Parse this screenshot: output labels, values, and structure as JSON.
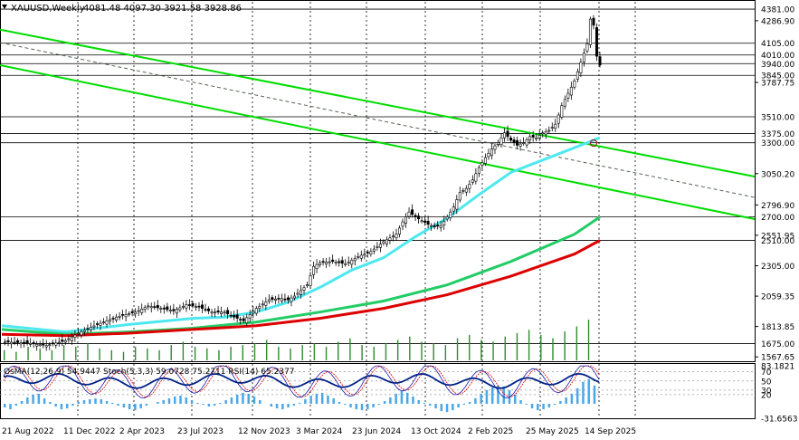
{
  "header": {
    "symbol": "XAUUSD,Weekly",
    "ohlc": "4081.48 4097.30 3921.58 3928.86"
  },
  "osc_header": "OsMA(12,26,9) 54.9447   Stoch(5,3,3) 59.0728 75.2711   RSI(14) 65.2377",
  "chart_data": [
    {
      "type": "candlestick",
      "x_labels": [
        "21 Aug 2022",
        "11 Dec 2022",
        "2 Apr 2023",
        "23 Jul 2023",
        "12 Nov 2023",
        "3 Mar 2024",
        "23 Jun 2024",
        "13 Oct 2024",
        "2 Feb 2025",
        "25 May 2025",
        "14 Sep 2025"
      ],
      "y_ticks": [
        "4286.90",
        "3787.75",
        "3050.20",
        "2796.90",
        "2551.95",
        "2305.00",
        "2059.35",
        "1813.85",
        "1567.65"
      ],
      "y_range": [
        1540,
        4440
      ],
      "levels": [
        {
          "value": 4381.0,
          "label": "4381.00"
        },
        {
          "value": 4105.0,
          "label": "4105.00"
        },
        {
          "value": 4010.0,
          "label": "4010.00"
        },
        {
          "value": 3940.0,
          "label": "3940.00"
        },
        {
          "value": 3845.0,
          "label": "3845.00"
        },
        {
          "value": 3510.0,
          "label": "3510.00"
        },
        {
          "value": 3375.0,
          "label": "3375.00"
        },
        {
          "value": 3300.0,
          "label": "3300.00"
        },
        {
          "value": 2700.0,
          "label": "2700.00"
        },
        {
          "value": 2510.0,
          "label": "2510.00"
        },
        {
          "value": 1675.0,
          "label": "1675.00"
        }
      ],
      "price_path": [
        [
          0,
          1690
        ],
        [
          8,
          1680
        ],
        [
          14,
          1660
        ],
        [
          20,
          1700
        ],
        [
          24,
          1760
        ],
        [
          30,
          1830
        ],
        [
          36,
          1890
        ],
        [
          42,
          1930
        ],
        [
          46,
          1980
        ],
        [
          50,
          1960
        ],
        [
          54,
          1940
        ],
        [
          58,
          1990
        ],
        [
          62,
          1970
        ],
        [
          66,
          1930
        ],
        [
          70,
          1930
        ],
        [
          72,
          1900
        ],
        [
          74,
          1880
        ],
        [
          76,
          1860
        ],
        [
          80,
          1960
        ],
        [
          84,
          2030
        ],
        [
          88,
          2040
        ],
        [
          90,
          2030
        ],
        [
          92,
          2060
        ],
        [
          96,
          2150
        ],
        [
          98,
          2300
        ],
        [
          100,
          2330
        ],
        [
          104,
          2340
        ],
        [
          108,
          2320
        ],
        [
          112,
          2380
        ],
        [
          116,
          2420
        ],
        [
          120,
          2500
        ],
        [
          124,
          2560
        ],
        [
          126,
          2660
        ],
        [
          128,
          2740
        ],
        [
          130,
          2700
        ],
        [
          134,
          2640
        ],
        [
          136,
          2620
        ],
        [
          138,
          2630
        ],
        [
          140,
          2700
        ],
        [
          142,
          2780
        ],
        [
          144,
          2900
        ],
        [
          146,
          2930
        ],
        [
          148,
          3000
        ],
        [
          150,
          3100
        ],
        [
          152,
          3180
        ],
        [
          154,
          3250
        ],
        [
          156,
          3300
        ],
        [
          158,
          3380
        ],
        [
          160,
          3320
        ],
        [
          162,
          3280
        ],
        [
          164,
          3300
        ],
        [
          166,
          3350
        ],
        [
          168,
          3340
        ],
        [
          170,
          3380
        ],
        [
          172,
          3400
        ],
        [
          174,
          3450
        ],
        [
          176,
          3600
        ],
        [
          178,
          3700
        ],
        [
          180,
          3800
        ],
        [
          182,
          3950
        ],
        [
          184,
          4100
        ],
        [
          185,
          4300
        ],
        [
          186,
          4250
        ],
        [
          187,
          4000
        ],
        [
          188,
          3928
        ]
      ],
      "moving_averages": [
        {
          "name": "",
          "color": "#4de8ef",
          "points": [
            [
              0,
              1820
            ],
            [
              20,
              1770
            ],
            [
              40,
              1830
            ],
            [
              60,
              1880
            ],
            [
              70,
              1890
            ],
            [
              80,
              1930
            ],
            [
              90,
              2010
            ],
            [
              100,
              2130
            ],
            [
              110,
              2270
            ],
            [
              120,
              2370
            ],
            [
              130,
              2540
            ],
            [
              140,
              2690
            ],
            [
              150,
              2880
            ],
            [
              160,
              3060
            ],
            [
              170,
              3160
            ],
            [
              180,
              3260
            ],
            [
              188,
              3340
            ]
          ]
        },
        {
          "name": "",
          "color": "#22cc66",
          "points": [
            [
              0,
              1790
            ],
            [
              20,
              1750
            ],
            [
              40,
              1770
            ],
            [
              60,
              1800
            ],
            [
              80,
              1850
            ],
            [
              100,
              1930
            ],
            [
              120,
              2020
            ],
            [
              140,
              2150
            ],
            [
              160,
              2340
            ],
            [
              180,
              2560
            ],
            [
              188,
              2700
            ]
          ]
        },
        {
          "name": "",
          "color": "#dd0000",
          "points": [
            [
              0,
              1750
            ],
            [
              20,
              1740
            ],
            [
              40,
              1760
            ],
            [
              60,
              1790
            ],
            [
              80,
              1820
            ],
            [
              100,
              1880
            ],
            [
              120,
              1960
            ],
            [
              140,
              2070
            ],
            [
              160,
              2220
            ],
            [
              180,
              2400
            ],
            [
              188,
              2510
            ]
          ]
        }
      ],
      "volume": [
        6,
        5,
        8,
        7,
        6,
        9,
        8,
        10,
        7,
        6,
        5,
        8,
        7,
        6,
        9,
        11,
        8,
        7,
        6,
        8,
        9,
        10,
        12,
        8,
        7,
        9,
        10,
        8,
        11,
        13,
        9,
        8,
        10,
        12,
        14,
        11,
        10,
        9,
        13,
        15,
        12,
        11,
        14,
        16,
        18,
        15,
        13,
        17,
        20,
        24
      ]
    },
    {
      "type": "oscillator",
      "y_labels": [
        "83.1821",
        "70",
        "50",
        "30",
        "20",
        "-31.6563"
      ],
      "osma": [
        -8,
        -12,
        -4,
        6,
        14,
        20,
        22,
        12,
        4,
        -6,
        -12,
        -10,
        -4,
        4,
        8,
        10,
        12,
        10,
        6,
        2,
        -4,
        -8,
        -12,
        -14,
        -10,
        -4,
        0,
        4,
        8,
        12,
        16,
        18,
        14,
        8,
        2,
        -2,
        -6,
        -4,
        2,
        8,
        14,
        20,
        24,
        22,
        16,
        8,
        0,
        -6,
        -10,
        -12,
        -8,
        -4,
        2,
        10,
        18,
        22,
        24,
        18,
        12,
        4,
        -2,
        -8,
        -12,
        -14,
        -12,
        -8,
        -2,
        6,
        14,
        22,
        28,
        24,
        16,
        8,
        2,
        -4,
        -10,
        -16,
        -18,
        -14,
        -8,
        -2,
        4,
        12,
        22,
        30,
        36,
        40,
        38,
        30,
        20,
        8,
        -2,
        -10,
        -14,
        -12,
        -8,
        -2,
        6,
        14,
        22,
        34,
        48,
        54,
        40
      ]
    }
  ]
}
